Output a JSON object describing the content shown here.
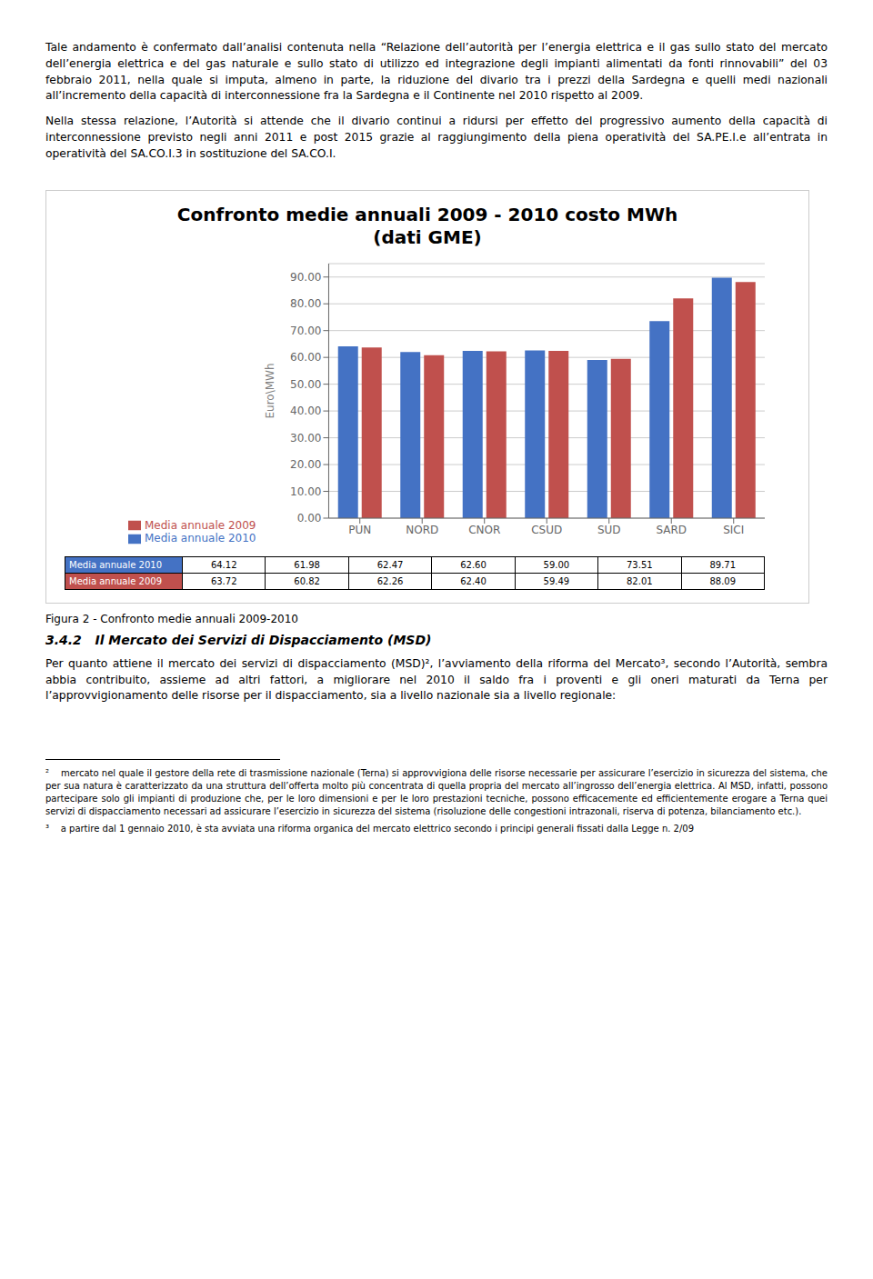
{
  "chart_data": {
    "type": "bar",
    "title": "Confronto medie annuali 2009 - 2010 costo MWh",
    "subtitle": "(dati GME)",
    "ylabel": "Euro\\MWh",
    "categories": [
      "PUN",
      "NORD",
      "CNOR",
      "CSUD",
      "SUD",
      "SARD",
      "SICI"
    ],
    "series": [
      {
        "name": "Media annuale 2010",
        "color": "#4472C4",
        "values": [
          64.12,
          61.98,
          62.47,
          62.6,
          59.0,
          73.51,
          89.71
        ],
        "value_labels": [
          "64.12",
          "61.98",
          "62.47",
          "62.60",
          "59.00",
          "73.51",
          "89.71"
        ]
      },
      {
        "name": "Media annuale 2009",
        "color": "#C0504D",
        "values": [
          63.72,
          60.82,
          62.26,
          62.4,
          59.49,
          82.01,
          88.09
        ],
        "value_labels": [
          "63.72",
          "60.82",
          "62.26",
          "62.40",
          "59.49",
          "82.01",
          "88.09"
        ]
      }
    ],
    "ylim": [
      0,
      95
    ],
    "yticks": [
      {
        "value": 0,
        "label": "0.00"
      },
      {
        "value": 10,
        "label": "10.00"
      },
      {
        "value": 20,
        "label": "20.00"
      },
      {
        "value": 30,
        "label": "30.00"
      },
      {
        "value": 40,
        "label": "40.00"
      },
      {
        "value": 50,
        "label": "50.00"
      },
      {
        "value": 60,
        "label": "60.00"
      },
      {
        "value": 70,
        "label": "70.00"
      },
      {
        "value": 80,
        "label": "80.00"
      },
      {
        "value": 90,
        "label": "90.00"
      }
    ],
    "grid": true,
    "legend": "bottom",
    "annotations": [
      "Tale andamento è confermato dall’analisi contenuta nella “Relazione dell’autorità per l’energia elettrica e il gas sullo stato del mercato dell’energia elettrica e del gas naturale e sullo stato di utilizzo ed integrazione degli impianti alimentati da fonti rinnovabili” del 03 febbraio 2011, nella quale si imputa, almeno in parte, la riduzione del divario tra i prezzi della Sardegna e quelli medi nazionali all’incremento della capacità di interconnessione fra la Sardegna e il Continente nel 2010 rispetto al 2009.",
      "Nella stessa relazione, l’Autorità si attende che il divario continui a ridursi per effetto del progressivo aumento della capacità di interconnessione previsto negli anni 2011 e post 2015 grazie al raggiungimento della piena operatività del SA.PE.I.e all’entrata in operatività del SA.CO.I.3 in sostituzione del SA.CO.I.",
      "Figura 2 - Confronto medie annuali 2009-2010",
      "3.4.2   Il Mercato dei Servizi di Dispacciamento (MSD)",
      "Per quanto attiene il mercato dei servizi di dispacciamento (MSD)², l’avviamento della riforma del Mercato³, secondo l’Autorità, sembra abbia contribuito, assieme ad altri fattori, a migliorare nel 2010 il saldo fra i proventi e gli oneri maturati da Terna per l’approvvigionamento delle risorse per il dispacciamento, sia a livello nazionale sia a livello regionale:",
      "²    mercato nel quale il gestore della rete di trasmissione nazionale (Terna) si approvvigiona delle risorse necessarie per assicurare l’esercizio in sicurezza del sistema, che per sua natura è caratterizzato da una struttura dell’offerta molto più concentrata di quella propria del mercato all’ingrosso dell’energia elettrica. Al MSD, infatti, possono partecipare solo gli impianti di produzione che, per le loro dimensioni e per le loro prestazioni tecniche, possono efficacemente ed efficientemente erogare a Terna quei servizi di dispacciamento necessari ad assicurare l’esercizio in sicurezza del sistema (risoluzione delle congestioni intrazonali, riserva di potenza, bilanciamento etc.).",
      "³    a partire dal 1 gennaio 2010, è sta avviata una riforma organica del mercato elettrico secondo i principi generali fissati dalla Legge n. 2/09"
    ]
  }
}
